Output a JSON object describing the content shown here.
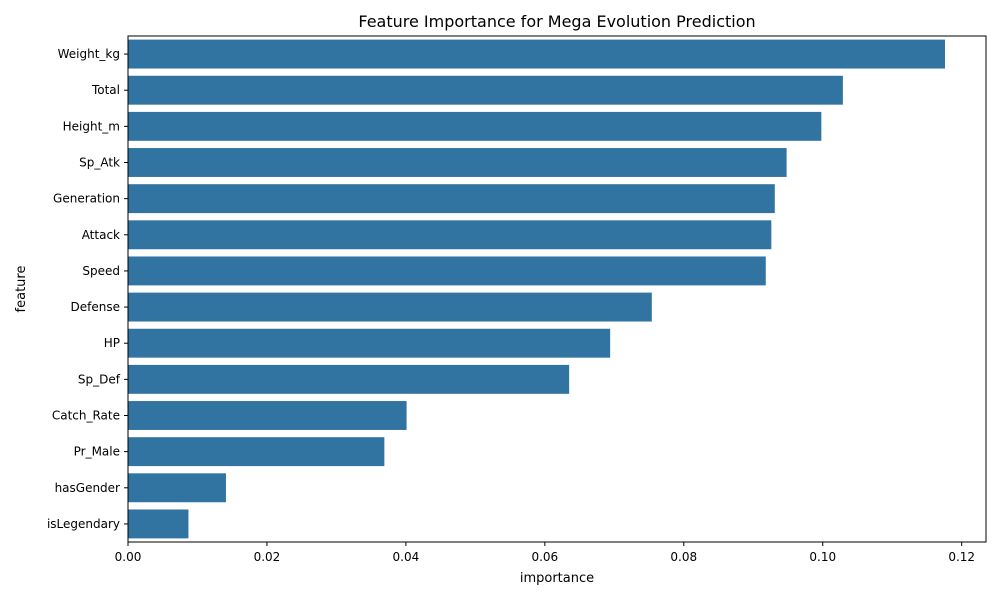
{
  "chart_data": {
    "type": "bar",
    "orientation": "horizontal",
    "title": "Feature Importance for Mega Evolution Prediction",
    "xlabel": "importance",
    "ylabel": "feature",
    "categories": [
      "Weight_kg",
      "Total",
      "Height_m",
      "Sp_Atk",
      "Generation",
      "Attack",
      "Speed",
      "Defense",
      "HP",
      "Sp_Def",
      "Catch_Rate",
      "Pr_Male",
      "hasGender",
      "isLegendary"
    ],
    "values": [
      0.1176,
      0.1029,
      0.0998,
      0.0948,
      0.0931,
      0.0926,
      0.0918,
      0.0754,
      0.0694,
      0.0635,
      0.0401,
      0.0369,
      0.0141,
      0.0087
    ],
    "xlim": [
      0,
      0.1235
    ],
    "xticks": [
      0.0,
      0.02,
      0.04,
      0.06,
      0.08,
      0.1,
      0.12
    ],
    "xtick_labels": [
      "0.00",
      "0.02",
      "0.04",
      "0.06",
      "0.08",
      "0.10",
      "0.12"
    ],
    "grid": false,
    "bar_color": "#3274a1"
  }
}
